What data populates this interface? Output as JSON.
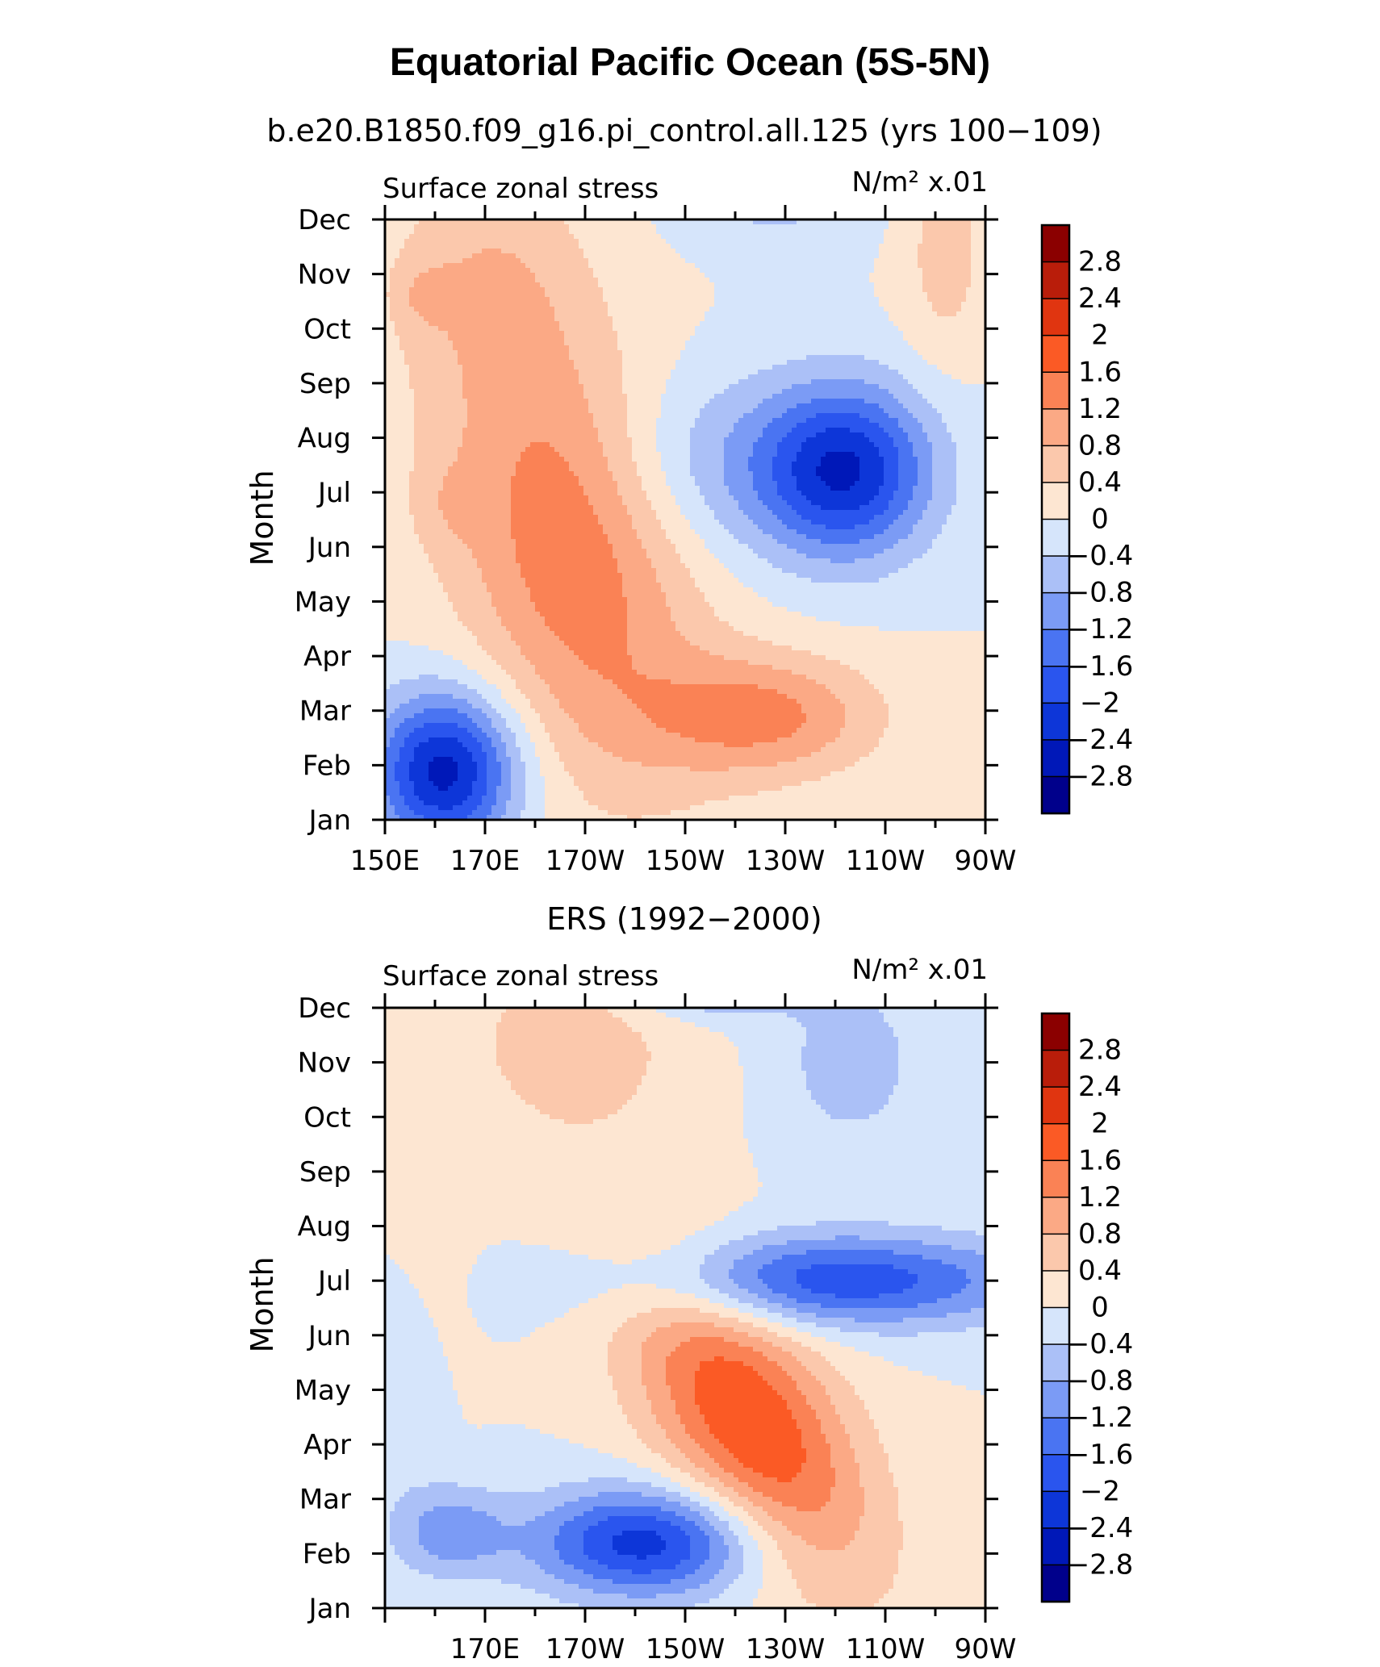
{
  "figure": {
    "title": "Equatorial Pacific Ocean (5S-5N)"
  },
  "chart_data": [
    {
      "type": "heatmap",
      "title": "b.e20.B1850.f09_g16.pi_control.all.125 (yrs 100−109)",
      "left_label": "Surface zonal stress",
      "units_label": "N/m² x.01",
      "ylabel": "Month",
      "xlabel": "",
      "x_ticks": [
        "150E",
        "170E",
        "170W",
        "150W",
        "130W",
        "110W",
        "90W"
      ],
      "y_ticks": [
        "Jan",
        "Feb",
        "Mar",
        "Apr",
        "May",
        "Jun",
        "Jul",
        "Aug",
        "Sep",
        "Oct",
        "Nov",
        "Dec"
      ],
      "xlim": [
        150,
        270
      ],
      "x_units": "degrees east",
      "contour_levels": [
        -2.8,
        -2.4,
        -2,
        -1.6,
        -1.2,
        -0.8,
        -0.4,
        0,
        0.4,
        0.8,
        1.2,
        1.6,
        2,
        2.4,
        2.8
      ],
      "legend_labels": [
        "2.8",
        "2.4",
        "2",
        "1.6",
        "1.2",
        "0.8",
        "0.4",
        "0",
        "−0.4",
        "−0.8",
        "−1.2",
        "−1.6",
        "−2",
        "−2.4",
        "−2.8"
      ],
      "legend_position": "right",
      "features": [
        {
          "lon": 187,
          "month": 5.0,
          "amp": 1.5,
          "sx": 18,
          "sy": 2.8,
          "tilt": -0.06
        },
        {
          "lon": 226,
          "month": 1.9,
          "amp": 1.3,
          "sx": 16,
          "sy": 0.8,
          "tilt": 0
        },
        {
          "lon": 162,
          "month": 0.9,
          "amp": -2.6,
          "sx": 10,
          "sy": 1.0,
          "tilt": 0
        },
        {
          "lon": 242,
          "month": 6.4,
          "amp": -2.4,
          "sx": 12,
          "sy": 1.1,
          "tilt": 0
        },
        {
          "lon": 215,
          "month": 6.5,
          "amp": -0.7,
          "sx": 15,
          "sy": 1.2,
          "tilt": 0
        },
        {
          "lon": 228,
          "month": 11.3,
          "amp": -0.5,
          "sx": 13,
          "sy": 0.6,
          "tilt": 0
        },
        {
          "lon": 170,
          "month": 10.0,
          "amp": 0.55,
          "sx": 14,
          "sy": 1.4,
          "tilt": 0
        },
        {
          "lon": 262,
          "month": 10.4,
          "amp": 0.6,
          "sx": 6,
          "sy": 1.4,
          "tilt": 0
        },
        {
          "lon": 158,
          "month": 9.6,
          "amp": 0.4,
          "sx": 4,
          "sy": 0.4,
          "tilt": 0
        },
        {
          "lon": 162,
          "month": 5.8,
          "amp": 0.3,
          "sx": 5,
          "sy": 0.6,
          "tilt": 0
        }
      ]
    },
    {
      "type": "heatmap",
      "title": "ERS (1992−2000)",
      "left_label": "Surface zonal stress",
      "units_label": "N/m² x.01",
      "ylabel": "Month",
      "xlabel": "",
      "x_ticks": [
        "170E",
        "170W",
        "150W",
        "130W",
        "110W",
        "90W"
      ],
      "y_ticks": [
        "Jan",
        "Feb",
        "Mar",
        "Apr",
        "May",
        "Jun",
        "Jul",
        "Aug",
        "Sep",
        "Oct",
        "Nov",
        "Dec"
      ],
      "xlim": [
        150,
        270
      ],
      "x_units": "degrees east",
      "contour_levels": [
        -2.8,
        -2.4,
        -2,
        -1.6,
        -1.2,
        -0.8,
        -0.4,
        0,
        0.4,
        0.8,
        1.2,
        1.6,
        2,
        2.4,
        2.8
      ],
      "legend_labels": [
        "2.8",
        "2.4",
        "2",
        "1.6",
        "1.2",
        "0.8",
        "0.4",
        "0",
        "−0.4",
        "−0.8",
        "−1.2",
        "−1.6",
        "−2",
        "−2.4",
        "−2.8"
      ],
      "legend_position": "right",
      "features": [
        {
          "lon": 223,
          "month": 3.4,
          "amp": 2.0,
          "sx": 17,
          "sy": 1.6,
          "tilt": -0.07
        },
        {
          "lon": 202,
          "month": 1.2,
          "amp": -2.2,
          "sx": 16,
          "sy": 0.7,
          "tilt": 0
        },
        {
          "lon": 163,
          "month": 1.4,
          "amp": -1.0,
          "sx": 8,
          "sy": 0.6,
          "tilt": 0
        },
        {
          "lon": 240,
          "month": 6.0,
          "amp": -1.9,
          "sx": 28,
          "sy": 0.6,
          "tilt": 0
        },
        {
          "lon": 215,
          "month": 11.7,
          "amp": -1.7,
          "sx": 12,
          "sy": 0.5,
          "tilt": 0
        },
        {
          "lon": 243,
          "month": 10.0,
          "amp": -0.6,
          "sx": 11,
          "sy": 1.2,
          "tilt": 0
        },
        {
          "lon": 188,
          "month": 10.4,
          "amp": 0.6,
          "sx": 17,
          "sy": 1.5,
          "tilt": 0
        },
        {
          "lon": 158,
          "month": 7.8,
          "amp": 0.25,
          "sx": 6,
          "sy": 4.0,
          "tilt": 0
        },
        {
          "lon": 155,
          "month": 4.0,
          "amp": -0.3,
          "sx": 6,
          "sy": 2.0,
          "tilt": 0
        }
      ]
    }
  ]
}
